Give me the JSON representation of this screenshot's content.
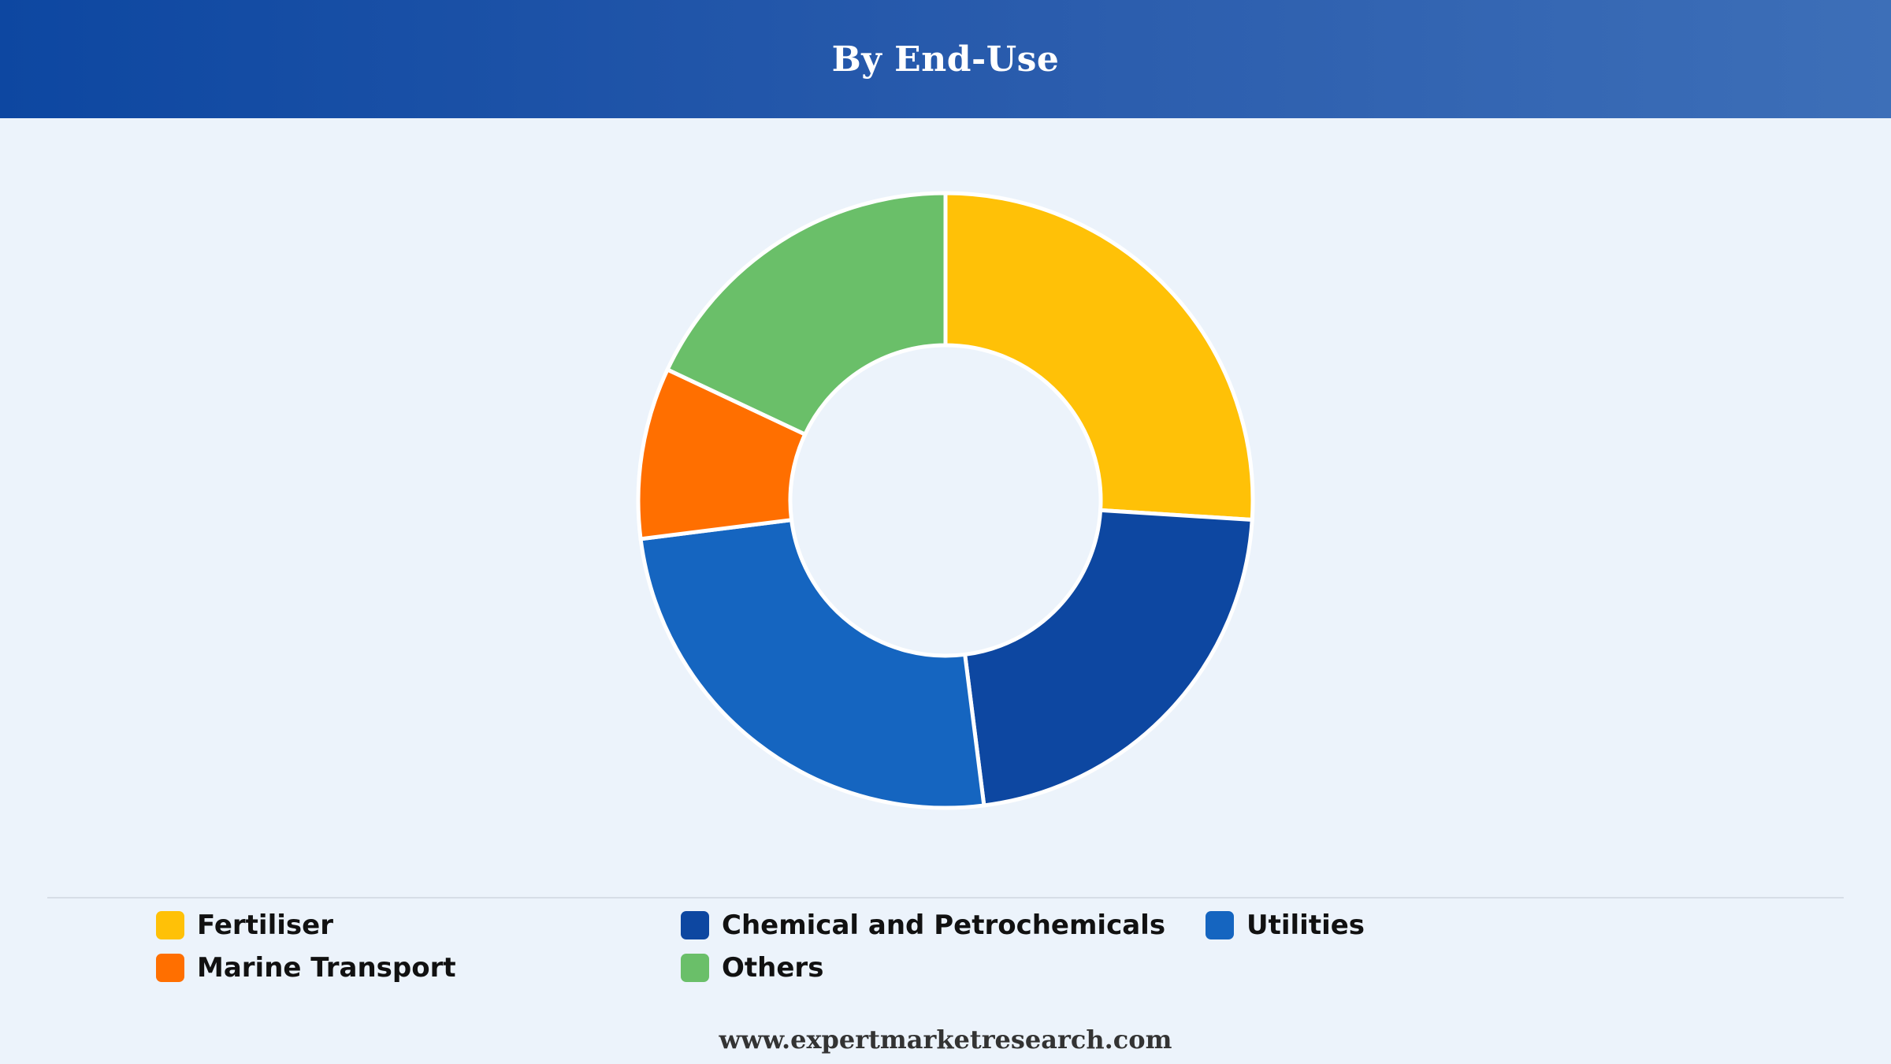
{
  "header": {
    "title": "By End-Use"
  },
  "chart_data": {
    "type": "pie",
    "donut": true,
    "categories": [
      "Fertiliser",
      "Chemical and Petrochemicals",
      "Utilities",
      "Marine Transport",
      "Others"
    ],
    "values": [
      26,
      22,
      25,
      9,
      18
    ],
    "colors": [
      "#ffc107",
      "#0d47a1",
      "#1565c0",
      "#ff6f00",
      "#6abf69"
    ],
    "legend": "bottom"
  },
  "footer": {
    "source": "www.expertmarketresearch.com"
  }
}
